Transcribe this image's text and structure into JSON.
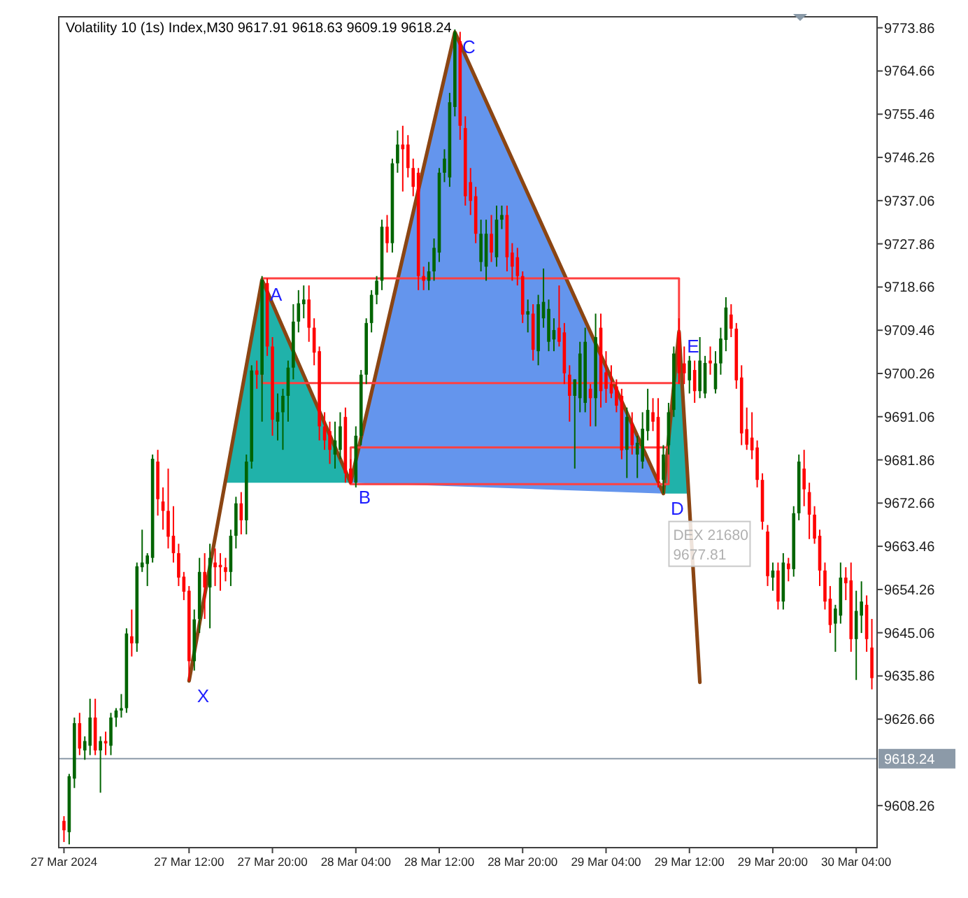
{
  "chart_data": {
    "type": "candlestick",
    "title": "Volatility 10 (1s) Index,M30  9617.91 9618.63 9609.19 9618.24",
    "x": [
      "2024-03-27T00:00",
      "2024-03-27T00:30",
      "2024-03-27T01:00",
      "2024-03-27T01:30",
      "2024-03-27T02:00",
      "2024-03-27T02:30",
      "2024-03-27T03:00",
      "2024-03-27T03:30",
      "2024-03-27T04:00",
      "2024-03-27T04:30",
      "2024-03-27T05:00",
      "2024-03-27T05:30",
      "2024-03-27T06:00",
      "2024-03-27T06:30",
      "2024-03-27T07:00",
      "2024-03-27T07:30",
      "2024-03-27T08:00",
      "2024-03-27T08:30",
      "2024-03-27T09:00",
      "2024-03-27T09:30",
      "2024-03-27T10:00",
      "2024-03-27T10:30",
      "2024-03-27T11:00",
      "2024-03-27T11:30",
      "2024-03-27T12:00",
      "2024-03-27T12:30",
      "2024-03-27T13:00",
      "2024-03-27T13:30",
      "2024-03-27T14:00",
      "2024-03-27T14:30",
      "2024-03-27T15:00",
      "2024-03-27T15:30",
      "2024-03-27T16:00",
      "2024-03-27T16:30",
      "2024-03-27T17:00",
      "2024-03-27T17:30",
      "2024-03-27T18:00",
      "2024-03-27T18:30",
      "2024-03-27T19:00",
      "2024-03-27T19:30",
      "2024-03-27T20:00",
      "2024-03-27T20:30",
      "2024-03-27T21:00",
      "2024-03-27T21:30",
      "2024-03-27T22:00",
      "2024-03-27T22:30",
      "2024-03-27T23:00",
      "2024-03-27T23:30",
      "2024-03-28T00:00",
      "2024-03-28T00:30",
      "2024-03-28T01:00",
      "2024-03-28T01:30",
      "2024-03-28T02:00",
      "2024-03-28T02:30",
      "2024-03-28T03:00",
      "2024-03-28T03:30",
      "2024-03-28T04:00",
      "2024-03-28T04:30",
      "2024-03-28T05:00",
      "2024-03-28T05:30",
      "2024-03-28T06:00",
      "2024-03-28T06:30",
      "2024-03-28T07:00",
      "2024-03-28T07:30",
      "2024-03-28T08:00",
      "2024-03-28T08:30",
      "2024-03-28T09:00",
      "2024-03-28T09:30",
      "2024-03-28T10:00",
      "2024-03-28T10:30",
      "2024-03-28T11:00",
      "2024-03-28T11:30",
      "2024-03-28T12:00",
      "2024-03-28T12:30",
      "2024-03-28T13:00",
      "2024-03-28T13:30",
      "2024-03-28T14:00",
      "2024-03-28T14:30",
      "2024-03-28T15:00",
      "2024-03-28T15:30",
      "2024-03-28T16:00",
      "2024-03-28T16:30",
      "2024-03-28T17:00",
      "2024-03-28T17:30",
      "2024-03-28T18:00",
      "2024-03-28T18:30",
      "2024-03-28T19:00",
      "2024-03-28T19:30",
      "2024-03-28T20:00",
      "2024-03-28T20:30",
      "2024-03-28T21:00",
      "2024-03-28T21:30",
      "2024-03-28T22:00",
      "2024-03-28T22:30",
      "2024-03-28T23:00",
      "2024-03-28T23:30",
      "2024-03-29T00:00",
      "2024-03-29T00:30",
      "2024-03-29T01:00",
      "2024-03-29T01:30",
      "2024-03-29T02:00",
      "2024-03-29T02:30",
      "2024-03-29T03:00",
      "2024-03-29T03:30",
      "2024-03-29T04:00",
      "2024-03-29T04:30",
      "2024-03-29T05:00",
      "2024-03-29T05:30",
      "2024-03-29T06:00",
      "2024-03-29T06:30",
      "2024-03-29T07:00",
      "2024-03-29T07:30",
      "2024-03-29T08:00",
      "2024-03-29T08:30",
      "2024-03-29T09:00",
      "2024-03-29T09:30",
      "2024-03-29T10:00",
      "2024-03-29T10:30",
      "2024-03-29T11:00",
      "2024-03-29T11:30",
      "2024-03-29T12:00",
      "2024-03-29T12:30",
      "2024-03-29T13:00",
      "2024-03-29T13:30",
      "2024-03-29T14:00",
      "2024-03-29T14:30",
      "2024-03-29T15:00",
      "2024-03-29T15:30",
      "2024-03-29T16:00",
      "2024-03-29T16:30",
      "2024-03-29T17:00",
      "2024-03-29T17:30",
      "2024-03-29T18:00",
      "2024-03-29T18:30",
      "2024-03-29T19:00",
      "2024-03-29T19:30",
      "2024-03-29T20:00",
      "2024-03-29T20:30",
      "2024-03-29T21:00",
      "2024-03-29T21:30",
      "2024-03-29T22:00",
      "2024-03-29T22:30",
      "2024-03-29T23:00",
      "2024-03-29T23:30",
      "2024-03-30T00:00",
      "2024-03-30T00:30",
      "2024-03-30T01:00",
      "2024-03-30T01:30",
      "2024-03-30T02:00",
      "2024-03-30T02:30",
      "2024-03-30T03:00",
      "2024-03-30T03:30",
      "2024-03-30T04:00",
      "2024-03-30T04:30",
      "2024-03-30T05:00",
      "2024-03-30T05:30"
    ],
    "ohlc": [
      [
        9605,
        9606,
        9600.5,
        9603
      ],
      [
        9602.6,
        9615,
        9600,
        9614.5
      ],
      [
        9614,
        9627,
        9612,
        9625.8
      ],
      [
        9625.8,
        9628,
        9619,
        9620.4
      ],
      [
        9620,
        9623,
        9618,
        9622
      ],
      [
        9621,
        9631,
        9619,
        9627
      ],
      [
        9627,
        9631,
        9619,
        9620
      ],
      [
        9620,
        9623,
        9611,
        9622
      ],
      [
        9622,
        9624,
        9619,
        9621.5
      ],
      [
        9621,
        9628,
        9619,
        9627
      ],
      [
        9627,
        9629,
        9625,
        9628.5
      ],
      [
        9628.5,
        9632,
        9627,
        9629
      ],
      [
        9629,
        9646,
        9628,
        9644.9
      ],
      [
        9644.3,
        9650,
        9640,
        9642.8
      ],
      [
        9642.8,
        9660,
        9641,
        9659.2
      ],
      [
        9659,
        9667,
        9658,
        9660
      ],
      [
        9659.7,
        9662,
        9655,
        9661.5
      ],
      [
        9661,
        9683,
        9660,
        9682.1
      ],
      [
        9681.5,
        9684,
        9670,
        9673.5
      ],
      [
        9673,
        9676,
        9667,
        9671
      ],
      [
        9671,
        9680,
        9663,
        9665.5
      ],
      [
        9665.7,
        9672,
        9660,
        9662
      ],
      [
        9662,
        9664,
        9655,
        9656.8
      ],
      [
        9657,
        9658,
        9652,
        9653.8
      ],
      [
        9654,
        9655,
        9634.8,
        9639
      ],
      [
        9639,
        9650,
        9637,
        9647.9
      ],
      [
        9648,
        9661,
        9645,
        9658
      ],
      [
        9658,
        9662,
        9648,
        9654.7
      ],
      [
        9654.7,
        9664,
        9646,
        9661
      ],
      [
        9660,
        9663,
        9655,
        9659
      ],
      [
        9659.5,
        9662,
        9654,
        9659
      ],
      [
        9659,
        9661,
        9656,
        9658
      ],
      [
        9658,
        9667,
        9655,
        9665.7
      ],
      [
        9665.7,
        9674,
        9663,
        9672.6
      ],
      [
        9672.6,
        9675,
        9666,
        9669
      ],
      [
        9669,
        9683,
        9666,
        9681.5
      ],
      [
        9681.5,
        9702,
        9680,
        9700.9
      ],
      [
        9700.9,
        9703,
        9697,
        9700
      ],
      [
        9700,
        9721,
        9690,
        9720.2
      ],
      [
        9719.5,
        9720.5,
        9704,
        9706
      ],
      [
        9706,
        9708,
        9687,
        9690.4
      ],
      [
        9690,
        9696,
        9686,
        9692
      ],
      [
        9692,
        9697,
        9684,
        9695.5
      ],
      [
        9695.5,
        9703,
        9690,
        9701.5
      ],
      [
        9701.5,
        9715,
        9699,
        9711.3
      ],
      [
        9711.3,
        9718,
        9709,
        9715.2
      ],
      [
        9715,
        9719,
        9712,
        9716
      ],
      [
        9716,
        9719,
        9707,
        9710
      ],
      [
        9710,
        9712,
        9702,
        9704.7
      ],
      [
        9705,
        9706,
        9686,
        9689
      ],
      [
        9689,
        9692,
        9684,
        9686
      ],
      [
        9688,
        9690,
        9681,
        9684
      ],
      [
        9683,
        9690,
        9680,
        9686
      ],
      [
        9684,
        9692,
        9682,
        9689
      ],
      [
        9691,
        9693,
        9677,
        9679
      ],
      [
        9680,
        9682,
        9676.7,
        9677
      ],
      [
        9677,
        9689,
        9676,
        9687
      ],
      [
        9687,
        9701,
        9685,
        9700
      ],
      [
        9700,
        9712,
        9698,
        9711
      ],
      [
        9711,
        9718,
        9709,
        9717
      ],
      [
        9717,
        9721,
        9715,
        9720
      ],
      [
        9720,
        9733,
        9718,
        9731.5
      ],
      [
        9731.5,
        9734,
        9726,
        9728
      ],
      [
        9728,
        9746,
        9726,
        9745
      ],
      [
        9745,
        9752,
        9743,
        9749
      ],
      [
        9749,
        9753,
        9739,
        9748
      ],
      [
        9749,
        9751,
        9742,
        9744
      ],
      [
        9744,
        9746,
        9738,
        9740
      ],
      [
        9743,
        9744,
        9718,
        9721
      ],
      [
        9721,
        9723,
        9718,
        9720
      ],
      [
        9720,
        9724,
        9718,
        9722
      ],
      [
        9722,
        9729,
        9720,
        9727
      ],
      [
        9726,
        9744,
        9724,
        9743
      ],
      [
        9743,
        9748,
        9741,
        9746
      ],
      [
        9742,
        9760,
        9740,
        9758
      ],
      [
        9757,
        9773.5,
        9755,
        9772.9
      ],
      [
        9771,
        9773,
        9750,
        9753
      ],
      [
        9752.5,
        9755,
        9736,
        9738
      ],
      [
        9741,
        9744,
        9734,
        9737
      ],
      [
        9738,
        9740,
        9728,
        9730
      ],
      [
        9724,
        9733,
        9722,
        9730
      ],
      [
        9723,
        9733,
        9720,
        9730
      ],
      [
        9730,
        9734,
        9724,
        9726
      ],
      [
        9725,
        9736,
        9723,
        9733
      ],
      [
        9733,
        9736,
        9731,
        9734
      ],
      [
        9734,
        9736,
        9722,
        9725
      ],
      [
        9726,
        9728,
        9720,
        9723
      ],
      [
        9725,
        9727,
        9719,
        9721
      ],
      [
        9721,
        9722,
        9711,
        9712.8
      ],
      [
        9712.8,
        9716,
        9709,
        9713.5
      ],
      [
        9713,
        9715,
        9703,
        9705.3
      ],
      [
        9705,
        9717,
        9702,
        9715
      ],
      [
        9712,
        9722.6,
        9710,
        9715.5
      ],
      [
        9707,
        9716,
        9705,
        9714
      ],
      [
        9707.5,
        9712,
        9705,
        9709.5
      ],
      [
        9710,
        9719,
        9706,
        9707
      ],
      [
        9709,
        9711,
        9698,
        9700.3
      ],
      [
        9700,
        9702,
        9690,
        9695.5
      ],
      [
        9695.5,
        9699,
        9680,
        9699
      ],
      [
        9695,
        9707,
        9692,
        9704.5
      ],
      [
        9694,
        9710,
        9692,
        9707
      ],
      [
        9697,
        9698,
        9689,
        9695
      ],
      [
        9695,
        9713,
        9689,
        9708
      ],
      [
        9710,
        9713,
        9693,
        9696.5
      ],
      [
        9700.5,
        9705,
        9694,
        9697
      ],
      [
        9698,
        9702,
        9695,
        9696
      ],
      [
        9697.5,
        9699,
        9692,
        9693.4
      ],
      [
        9695.5,
        9697,
        9682,
        9683.9
      ],
      [
        9684,
        9693,
        9678,
        9691
      ],
      [
        9689.5,
        9692,
        9683,
        9685
      ],
      [
        9683,
        9687,
        9678,
        9685.5
      ],
      [
        9681.5,
        9692,
        9680,
        9688.5
      ],
      [
        9688,
        9697,
        9686,
        9692.5
      ],
      [
        9692,
        9695,
        9688,
        9690
      ],
      [
        9691,
        9695,
        9676,
        9677.6
      ],
      [
        9677.6,
        9685,
        9674.7,
        9683
      ],
      [
        9685,
        9694,
        9683,
        9692
      ],
      [
        9692.5,
        9706,
        9691,
        9704.5
      ],
      [
        9709,
        9712,
        9698,
        9700.3
      ],
      [
        9702.4,
        9706,
        9698,
        9700.3
      ],
      [
        9698.8,
        9704,
        9696,
        9703
      ],
      [
        9701,
        9703,
        9694,
        9696.5
      ],
      [
        9696.5,
        9708,
        9695,
        9703
      ],
      [
        9696,
        9704,
        9695,
        9702.5
      ],
      [
        9703,
        9706,
        9700,
        9702.4
      ],
      [
        9696.9,
        9705,
        9696,
        9702.4
      ],
      [
        9702.4,
        9710,
        9700,
        9707.7
      ],
      [
        9707.4,
        9716.5,
        9705,
        9714.3
      ],
      [
        9712.8,
        9715,
        9708,
        9709.8
      ],
      [
        9709.8,
        9711,
        9697,
        9698.8
      ],
      [
        9699.4,
        9702,
        9685,
        9687.5
      ],
      [
        9688.4,
        9693,
        9684,
        9685.1
      ],
      [
        9686.6,
        9692,
        9682,
        9683.9
      ],
      [
        9684.5,
        9686,
        9676,
        9677.6
      ],
      [
        9677.6,
        9679,
        9667,
        9668.7
      ],
      [
        9666.6,
        9668,
        9655,
        9657.1
      ],
      [
        9656.8,
        9660,
        9654,
        9658.3
      ],
      [
        9658.3,
        9660,
        9650,
        9651.7
      ],
      [
        9651.7,
        9662,
        9650,
        9660
      ],
      [
        9659.8,
        9661,
        9656,
        9658.6
      ],
      [
        9658.6,
        9672,
        9657,
        9670.5
      ],
      [
        9670.5,
        9683,
        9669,
        9681.5
      ],
      [
        9680,
        9684,
        9672,
        9675.6
      ],
      [
        9675,
        9677,
        9665,
        9670.2
      ],
      [
        9670.2,
        9672,
        9664,
        9665.1
      ],
      [
        9665.7,
        9667,
        9655,
        9658.3
      ],
      [
        9658.3,
        9660,
        9650,
        9651.7
      ],
      [
        9652.3,
        9655,
        9645,
        9646.7
      ],
      [
        9647,
        9651,
        9641,
        9650.2
      ],
      [
        9648.7,
        9660,
        9647,
        9656.8
      ],
      [
        9656.8,
        9659,
        9652,
        9655.6
      ],
      [
        9656.2,
        9660,
        9641,
        9643.7
      ],
      [
        9643.7,
        9654,
        9635,
        9649.7
      ],
      [
        9648.7,
        9656,
        9645,
        9651.7
      ],
      [
        9651,
        9653,
        9641,
        9643.7
      ],
      [
        9641.9,
        9648,
        9633,
        9635.4
      ]
    ],
    "series": [
      {
        "type": "line",
        "color": "#8b4513",
        "x": [
          "2024-03-27T12:00",
          "2024-03-27T19:00",
          "2024-03-28T03:30",
          "2024-03-28T13:30",
          "2024-03-29T09:30",
          "2024-03-29T11:00",
          "2024-03-29T13:00"
        ],
        "values": [
          9634.8,
          9720.2,
          9677,
          9772.9,
          9674.7,
          9709.2,
          9634.5
        ]
      },
      {
        "type": "line",
        "color": "#ff4040",
        "x": [
          "2024-03-27T19:00",
          "2024-03-29T11:00"
        ],
        "values": [
          9720.5,
          9720.5
        ]
      },
      {
        "type": "line",
        "color": "#ff4040",
        "x": [
          "2024-03-27T19:00",
          "2024-03-29T11:00"
        ],
        "values": [
          9698.2,
          9698.2
        ]
      },
      {
        "type": "line",
        "color": "#ff4040",
        "x": [
          "2024-03-28T03:30",
          "2024-03-29T10:00"
        ],
        "values": [
          9684.5,
          9684.5
        ]
      },
      {
        "type": "line",
        "color": "#ff4040",
        "x": [
          "2024-03-28T03:30",
          "2024-03-29T10:00"
        ],
        "values": [
          9676.7,
          9676.7
        ]
      }
    ],
    "xlim": [
      "2024-03-26T23:30",
      "2024-03-30T06:00"
    ],
    "xticks": [
      {
        "value": "2024-03-27T00:00",
        "label": "27 Mar 2024"
      },
      {
        "value": "2024-03-27T12:00",
        "label": "27 Mar 12:00"
      },
      {
        "value": "2024-03-27T20:00",
        "label": "27 Mar 20:00"
      },
      {
        "value": "2024-03-28T04:00",
        "label": "28 Mar 04:00"
      },
      {
        "value": "2024-03-28T12:00",
        "label": "28 Mar 12:00"
      },
      {
        "value": "2024-03-28T20:00",
        "label": "28 Mar 20:00"
      },
      {
        "value": "2024-03-29T04:00",
        "label": "29 Mar 04:00"
      },
      {
        "value": "2024-03-29T12:00",
        "label": "29 Mar 12:00"
      },
      {
        "value": "2024-03-29T20:00",
        "label": "29 Mar 20:00"
      },
      {
        "value": "2024-03-30T04:00",
        "label": "30 Mar 04:00"
      }
    ],
    "ylim": [
      9599.3,
      9776.2
    ],
    "yticks": [
      9608.26,
      9626.66,
      9635.86,
      9645.06,
      9654.26,
      9663.46,
      9672.66,
      9681.86,
      9691.06,
      9700.26,
      9709.46,
      9718.66,
      9727.86,
      9737.06,
      9746.26,
      9755.46,
      9764.66,
      9773.86
    ],
    "ref_lines": [
      {
        "axis": "y",
        "value": 9618.24,
        "label": "9618.24",
        "color": "#8c9aa8"
      }
    ],
    "annotations": [
      {
        "text": "X",
        "x": "2024-03-27T12:00",
        "y": 9634.8
      },
      {
        "text": "A",
        "x": "2024-03-27T19:00",
        "y": 9720.2
      },
      {
        "text": "B",
        "x": "2024-03-28T03:30",
        "y": 9677
      },
      {
        "text": "C",
        "x": "2024-03-28T13:30",
        "y": 9772.9
      },
      {
        "text": "D",
        "x": "2024-03-29T09:30",
        "y": 9674.7
      },
      {
        "text": "E",
        "x": "2024-03-29T11:00",
        "y": 9709.2
      },
      "DEX 21680\n9677.81"
    ],
    "grid": false
  }
}
